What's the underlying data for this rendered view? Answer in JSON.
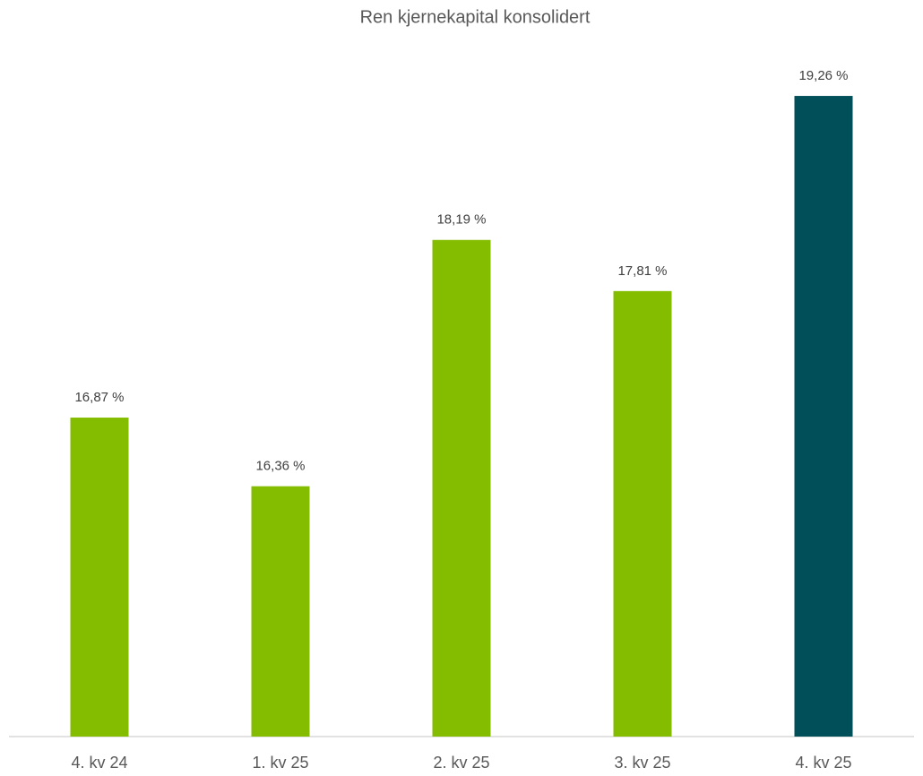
{
  "chart_data": {
    "type": "bar",
    "title": "Ren kjernekapital konsolidert",
    "categories": [
      "4. kv 24",
      "1. kv 25",
      "2. kv 25",
      "3. kv 25",
      "4. kv 25"
    ],
    "values": [
      16.87,
      16.36,
      18.19,
      17.81,
      19.26
    ],
    "value_labels": [
      "16,87 %",
      "16,36 %",
      "18,19 %",
      "17,81 %",
      "19,26 %"
    ],
    "colors": [
      "#84bd00",
      "#84bd00",
      "#84bd00",
      "#84bd00",
      "#004f59"
    ],
    "ylim": [
      14.5,
      19.5
    ]
  }
}
